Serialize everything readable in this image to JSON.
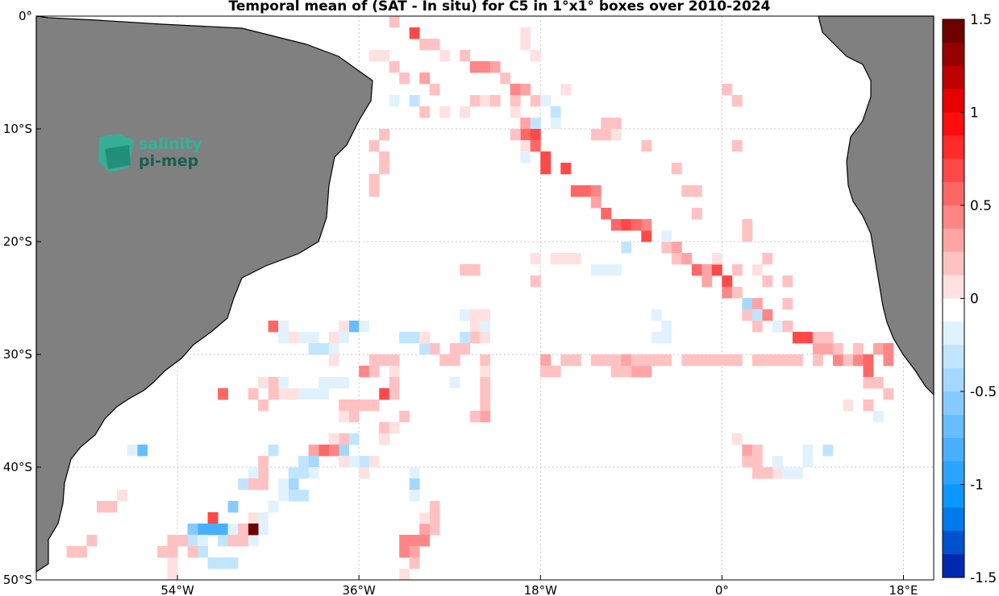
{
  "title": "Temporal mean of (SAT - In situ) for C5 in 1°x1° boxes over 2010-2024",
  "logo": {
    "line1": "salinity",
    "line2": "pi-mep",
    "color1": "#2bb59a",
    "color2": "#15604f"
  },
  "colors": {
    "land": "#808080",
    "grid": "#c8c8c8"
  },
  "map": {
    "lon_range": [
      -68,
      21
    ],
    "lat_range": [
      -50,
      0
    ],
    "lat_ticks": [
      {
        "value": 0,
        "label": "0°"
      },
      {
        "value": -10,
        "label": "10°S"
      },
      {
        "value": -20,
        "label": "20°S"
      },
      {
        "value": -30,
        "label": "30°S"
      },
      {
        "value": -40,
        "label": "40°S"
      },
      {
        "value": -50,
        "label": "50°S"
      }
    ],
    "lon_ticks": [
      {
        "value": -54,
        "label": "54°W"
      },
      {
        "value": -36,
        "label": "36°W"
      },
      {
        "value": -18,
        "label": "18°W"
      },
      {
        "value": 0,
        "label": "0°"
      },
      {
        "value": 18,
        "label": "18°E"
      }
    ]
  },
  "colorbar": {
    "range": [
      -1.5,
      1.5
    ],
    "ticks": [
      {
        "value": 1.5,
        "label": "1.5"
      },
      {
        "value": 1,
        "label": "1"
      },
      {
        "value": 0.5,
        "label": "0.5"
      },
      {
        "value": 0,
        "label": "0"
      },
      {
        "value": -0.5,
        "label": "-0.5"
      },
      {
        "value": -1,
        "label": "-1"
      },
      {
        "value": -1.5,
        "label": "-1.5"
      }
    ]
  },
  "cells": [
    [
      -33,
      0,
      0.2
    ],
    [
      -31,
      -1,
      0.8
    ],
    [
      -30,
      -2,
      0.3
    ],
    [
      -29,
      -2,
      0.3
    ],
    [
      -28,
      -3,
      0.1
    ],
    [
      -26,
      -3,
      0.3
    ],
    [
      -25,
      -4,
      0.5
    ],
    [
      -24,
      -4,
      0.5
    ],
    [
      -23,
      -4,
      0.4
    ],
    [
      -22,
      -5,
      0.3
    ],
    [
      -21,
      -6,
      0.5
    ],
    [
      -20,
      -6,
      0.4
    ],
    [
      -19,
      -7,
      0.3
    ],
    [
      -35,
      -3,
      0.1
    ],
    [
      -34,
      -3,
      0.1
    ],
    [
      -33,
      -4,
      0.3
    ],
    [
      -32,
      -5,
      0.2
    ],
    [
      -30,
      -5,
      0.4
    ],
    [
      -29,
      -6,
      0.2
    ],
    [
      -20,
      -1,
      0.1
    ],
    [
      -20,
      -2,
      0.1
    ],
    [
      -19,
      -3,
      0.1
    ],
    [
      -16,
      -6,
      0.1
    ],
    [
      -33,
      -7,
      -0.1
    ],
    [
      -31,
      -7,
      -0.2
    ],
    [
      -30,
      -8,
      0.3
    ],
    [
      -28,
      -8,
      0.1
    ],
    [
      -26,
      -8,
      0.1
    ],
    [
      -25,
      -7,
      0.2
    ],
    [
      -24,
      -7,
      0.1
    ],
    [
      -23,
      -7,
      0.2
    ],
    [
      -21,
      -7,
      0.2
    ],
    [
      -21,
      -8,
      0.1
    ],
    [
      -20,
      -9,
      0.4
    ],
    [
      -20,
      -10,
      0.6
    ],
    [
      -20,
      -11,
      0.1
    ],
    [
      -19,
      -9,
      -0.2
    ],
    [
      -19,
      -10,
      0.7
    ],
    [
      -19,
      -11,
      0.6
    ],
    [
      -21,
      -10,
      0.2
    ],
    [
      -20,
      -12,
      -0.1
    ],
    [
      -34,
      -10,
      0.3
    ],
    [
      -35,
      -11,
      0.2
    ],
    [
      -34,
      -12,
      0.2
    ],
    [
      -34,
      -13,
      0.3
    ],
    [
      -35,
      -14,
      0.3
    ],
    [
      -35,
      -15,
      0.2
    ],
    [
      -18,
      -7,
      -0.1
    ],
    [
      -17,
      -8,
      -0.2
    ],
    [
      -17,
      -9,
      -0.1
    ],
    [
      -18,
      -13,
      0.8
    ],
    [
      -18,
      -12,
      0.7
    ],
    [
      -16,
      -13,
      0.7
    ],
    [
      -15,
      -15,
      0.6
    ],
    [
      -14,
      -15,
      0.6
    ],
    [
      -13,
      -15,
      0.5
    ],
    [
      -13,
      -16,
      0.4
    ],
    [
      -12,
      -17,
      0.6
    ],
    [
      -11,
      -18,
      0.6
    ],
    [
      -10,
      -18,
      0.7
    ],
    [
      -9,
      -18,
      0.6
    ],
    [
      -8,
      -19,
      0.8
    ],
    [
      -8,
      -18,
      0.5
    ],
    [
      -8,
      -11,
      0.2
    ],
    [
      -11,
      -9,
      0.3
    ],
    [
      -12,
      -9,
      0.3
    ],
    [
      -13,
      -10,
      0.2
    ],
    [
      -12,
      -10,
      0.2
    ],
    [
      -11,
      -10,
      0.1
    ],
    [
      -5,
      -13,
      0.2
    ],
    [
      -4,
      -15,
      0.3
    ],
    [
      -3,
      -15,
      0.3
    ],
    [
      -3,
      -17,
      0.2
    ],
    [
      0,
      -6,
      0.2
    ],
    [
      1,
      -7,
      0.3
    ],
    [
      1,
      -11,
      0.2
    ],
    [
      2,
      -18,
      0.2
    ],
    [
      2,
      -19,
      0.2
    ],
    [
      4,
      -21,
      0.2
    ],
    [
      -6,
      -20,
      0.3
    ],
    [
      -5,
      -20,
      0.4
    ],
    [
      -5,
      -21,
      0.3
    ],
    [
      -4,
      -21,
      0.4
    ],
    [
      -3,
      -22,
      0.6
    ],
    [
      -2,
      -22,
      0.4
    ],
    [
      -2,
      -23,
      0.4
    ],
    [
      -1,
      -22,
      0.7
    ],
    [
      0,
      -23,
      0.7
    ],
    [
      0,
      -24,
      0.5
    ],
    [
      1,
      -24,
      0.3
    ],
    [
      2,
      -25,
      -0.4
    ],
    [
      3,
      -25,
      0.4
    ],
    [
      2,
      -26,
      0.2
    ],
    [
      3,
      -26,
      -0.2
    ],
    [
      4,
      -26,
      0.5
    ],
    [
      5,
      -27,
      0.5
    ],
    [
      6,
      -27,
      0.4
    ],
    [
      7,
      -28,
      0.7
    ],
    [
      8,
      -28,
      0.8
    ],
    [
      9,
      -29,
      0.4
    ],
    [
      10,
      -29,
      0.4
    ],
    [
      11,
      -30,
      0.5
    ],
    [
      12,
      -30,
      0.3
    ],
    [
      13,
      -30,
      0.5
    ],
    [
      14,
      -31,
      0.6
    ],
    [
      14,
      -30,
      0.6
    ],
    [
      15,
      -29,
      0.4
    ],
    [
      16,
      -29,
      0.5
    ],
    [
      16,
      -30,
      0.5
    ],
    [
      -10,
      -20,
      -0.2
    ],
    [
      -11,
      -22,
      -0.1
    ],
    [
      -12,
      -22,
      -0.1
    ],
    [
      -13,
      -22,
      -0.1
    ],
    [
      -6,
      -19,
      -0.1
    ],
    [
      -1,
      -21,
      0.1
    ],
    [
      1,
      -22,
      0.2
    ],
    [
      3,
      -22,
      0.1
    ],
    [
      4,
      -23,
      0.2
    ],
    [
      6,
      -23,
      0.2
    ],
    [
      6,
      -25,
      0.2
    ],
    [
      -7,
      -26,
      -0.1
    ],
    [
      -6,
      -27,
      -0.1
    ],
    [
      -6,
      -28,
      -0.1
    ],
    [
      -7,
      -28,
      -0.1
    ],
    [
      3,
      -27,
      0.2
    ],
    [
      5,
      -27,
      -0.1
    ],
    [
      6,
      -27,
      0.2
    ],
    [
      9,
      -28,
      0.2
    ],
    [
      10,
      -28,
      0.3
    ],
    [
      11,
      -29,
      0.3
    ],
    [
      13,
      -29,
      0.2
    ],
    [
      14,
      -32,
      0.3
    ],
    [
      15,
      -32,
      0.2
    ],
    [
      16,
      -33,
      0.2
    ],
    [
      14,
      -34,
      0.2
    ],
    [
      15,
      -35,
      -0.1
    ],
    [
      12,
      -34,
      0.1
    ],
    [
      -18,
      -30,
      0.4
    ],
    [
      -18,
      -31,
      0.3
    ],
    [
      -17,
      -31,
      0.2
    ],
    [
      -16,
      -30,
      0.2
    ],
    [
      -15,
      -30,
      0.2
    ],
    [
      -13,
      -30,
      0.2
    ],
    [
      -12,
      -30,
      0.3
    ],
    [
      -11,
      -30,
      0.3
    ],
    [
      -10,
      -30,
      0.4
    ],
    [
      -9,
      -31,
      0.4
    ],
    [
      -8,
      -31,
      0.4
    ],
    [
      -7,
      -30,
      0.3
    ],
    [
      -6,
      -30,
      0.2
    ],
    [
      -4,
      -30,
      0.2
    ],
    [
      -3,
      -30,
      0.2
    ],
    [
      -2,
      -30,
      0.2
    ],
    [
      -1,
      -30,
      0.2
    ],
    [
      0,
      -30,
      0.2
    ],
    [
      1,
      -30,
      0.2
    ],
    [
      3,
      -30,
      0.2
    ],
    [
      4,
      -30,
      0.2
    ],
    [
      5,
      -30,
      0.2
    ],
    [
      6,
      -30,
      0.2
    ],
    [
      7,
      -30,
      0.2
    ],
    [
      9,
      -30,
      0.3
    ],
    [
      -9,
      -30,
      0.3
    ],
    [
      -10,
      -31,
      0.3
    ],
    [
      -11,
      -31,
      0.2
    ],
    [
      -8,
      -30,
      0.3
    ],
    [
      -26,
      -22,
      0.3
    ],
    [
      -25,
      -22,
      0.2
    ],
    [
      -19,
      -21,
      0.1
    ],
    [
      -17,
      -21,
      0.1
    ],
    [
      -16,
      -21,
      0.1
    ],
    [
      -15,
      -21,
      0.1
    ],
    [
      -19,
      -23,
      0.2
    ],
    [
      -26,
      -26,
      -0.1
    ],
    [
      -25,
      -26,
      0.1
    ],
    [
      -24,
      -26,
      0.1
    ],
    [
      -24,
      -27,
      -0.1
    ],
    [
      -25,
      -27,
      0.1
    ],
    [
      -25,
      -28,
      0.2
    ],
    [
      -26,
      -28,
      -0.2
    ],
    [
      -24,
      -28,
      0.1
    ],
    [
      -28,
      -30,
      0.2
    ],
    [
      -27,
      -30,
      0.2
    ],
    [
      -26,
      -29,
      0.3
    ],
    [
      -27,
      -29,
      0.2
    ],
    [
      -29,
      -29,
      0.2
    ],
    [
      -30,
      -29,
      -0.2
    ],
    [
      -31,
      -28,
      -0.2
    ],
    [
      -32,
      -28,
      -0.2
    ],
    [
      -30,
      -28,
      0.1
    ],
    [
      -33,
      -30,
      0.2
    ],
    [
      -34,
      -30,
      0.2
    ],
    [
      -35,
      -30,
      0.2
    ],
    [
      -36,
      -31,
      0.5
    ],
    [
      -35,
      -31,
      0.2
    ],
    [
      -33,
      -31,
      0.1
    ],
    [
      -33,
      -32,
      0.2
    ],
    [
      -37,
      -27,
      -0.6
    ],
    [
      -36,
      -27,
      -0.1
    ],
    [
      -38,
      -27,
      0.1
    ],
    [
      -38,
      -28,
      -0.1
    ],
    [
      -39,
      -28,
      0.1
    ],
    [
      -45,
      -27,
      0.6
    ],
    [
      -44,
      -27,
      -0.1
    ],
    [
      -44,
      -28,
      -0.1
    ],
    [
      -43,
      -28,
      0.1
    ],
    [
      -42,
      -28,
      -0.1
    ],
    [
      -41,
      -28,
      -0.1
    ],
    [
      -41,
      -29,
      -0.2
    ],
    [
      -40,
      -29,
      -0.2
    ],
    [
      -39,
      -29,
      -0.1
    ],
    [
      -39,
      -30,
      0.1
    ],
    [
      -24,
      -30,
      0.2
    ],
    [
      -24,
      -31,
      0.1
    ],
    [
      -24,
      -32,
      0.3
    ],
    [
      -24,
      -33,
      0.3
    ],
    [
      -24,
      -34,
      0.2
    ],
    [
      -24,
      -35,
      0.4
    ],
    [
      -25,
      -35,
      0.3
    ],
    [
      -27,
      -32,
      -0.1
    ],
    [
      -38,
      -34,
      0.2
    ],
    [
      -37,
      -34,
      0.2
    ],
    [
      -36,
      -34,
      0.2
    ],
    [
      -35,
      -34,
      0.2
    ],
    [
      -34,
      -33,
      0.7
    ],
    [
      -33,
      -33,
      0.2
    ],
    [
      -32,
      -35,
      0.2
    ],
    [
      -33,
      -36,
      0.2
    ],
    [
      -34,
      -36,
      0.2
    ],
    [
      -34,
      -37,
      0.2
    ],
    [
      -37,
      -35,
      0.2
    ],
    [
      -40,
      -32,
      -0.1
    ],
    [
      -39,
      -32,
      -0.1
    ],
    [
      -38,
      -32,
      -0.1
    ],
    [
      -40,
      -33,
      -0.1
    ],
    [
      -41,
      -33,
      -0.1
    ],
    [
      -42,
      -33,
      -0.1
    ],
    [
      -43,
      -33,
      0.1
    ],
    [
      -44,
      -33,
      0.1
    ],
    [
      -44,
      -32,
      -0.1
    ],
    [
      -45,
      -32,
      0.2
    ],
    [
      -46,
      -32,
      0.1
    ],
    [
      -47,
      -33,
      0.3
    ],
    [
      -45,
      -33,
      0.2
    ],
    [
      -46,
      -34,
      0.2
    ],
    [
      -50,
      -33,
      0.6
    ],
    [
      -38,
      -35,
      0.1
    ],
    [
      -37,
      -37,
      -0.2
    ],
    [
      -38,
      -37,
      0.2
    ],
    [
      -38,
      -38,
      -0.4
    ],
    [
      -39,
      -37,
      0.1
    ],
    [
      -39,
      -38,
      0.5
    ],
    [
      -40,
      -38,
      0.6
    ],
    [
      -41,
      -38,
      0.4
    ],
    [
      -41,
      -39,
      -0.4
    ],
    [
      -41,
      -40,
      -0.1
    ],
    [
      -42,
      -39,
      -0.3
    ],
    [
      -43,
      -40,
      -0.2
    ],
    [
      -42,
      -40,
      -0.2
    ],
    [
      -43,
      -41,
      -0.4
    ],
    [
      -42,
      -42,
      -0.3
    ],
    [
      -43,
      -42,
      -0.3
    ],
    [
      -44,
      -41,
      -0.1
    ],
    [
      -44,
      -42,
      -0.1
    ],
    [
      -45,
      -43,
      -0.1
    ],
    [
      -46,
      -44,
      -0.1
    ],
    [
      -46,
      -45,
      -0.1
    ],
    [
      -47,
      -45,
      -0.1
    ],
    [
      -47,
      -46,
      -0.1
    ],
    [
      -45,
      -38,
      -0.2
    ],
    [
      -46,
      -39,
      0.2
    ],
    [
      -46,
      -40,
      0.3
    ],
    [
      -47,
      -40,
      -0.1
    ],
    [
      -47,
      -41,
      0.3
    ],
    [
      -46,
      -41,
      0.2
    ],
    [
      -48,
      -41,
      -0.2
    ],
    [
      -49,
      -43,
      -0.5
    ],
    [
      -31,
      -40,
      -0.1
    ],
    [
      -31,
      -41,
      -0.4
    ],
    [
      -31,
      -42,
      -0.1
    ],
    [
      -29,
      -44,
      0.2
    ],
    [
      -29,
      -45,
      0.3
    ],
    [
      -30,
      -45,
      0.4
    ],
    [
      -30,
      -46,
      0.5
    ],
    [
      -31,
      -46,
      0.5
    ],
    [
      -32,
      -46,
      0.5
    ],
    [
      -32,
      -47,
      0.5
    ],
    [
      -31,
      -47,
      0.4
    ],
    [
      -31,
      -48,
      0.2
    ],
    [
      -32,
      -49,
      0.1
    ],
    [
      -30,
      -44,
      0.1
    ],
    [
      -29,
      -43,
      0.2
    ],
    [
      -47,
      -44,
      0.1
    ],
    [
      -47,
      -45,
      0.2
    ],
    [
      -47,
      -45,
      1.5
    ],
    [
      -51,
      -44,
      0.8
    ],
    [
      -51,
      -45,
      -0.8
    ],
    [
      -52,
      -45,
      -0.8
    ],
    [
      -50,
      -45,
      -0.8
    ],
    [
      -53,
      -45,
      -0.5
    ],
    [
      -49,
      -45,
      -0.1
    ],
    [
      -48,
      -45,
      0.2
    ],
    [
      -53,
      -46,
      -0.3
    ],
    [
      -54,
      -46,
      0.2
    ],
    [
      -55,
      -46,
      0.2
    ],
    [
      -52,
      -46,
      -0.1
    ],
    [
      -50,
      -46,
      -0.3
    ],
    [
      -49,
      -46,
      0.3
    ],
    [
      -48,
      -46,
      0.2
    ],
    [
      -52,
      -47,
      -0.3
    ],
    [
      -53,
      -47,
      0.2
    ],
    [
      -55,
      -47,
      0.2
    ],
    [
      -56,
      -47,
      0.2
    ],
    [
      -49,
      -48,
      -0.3
    ],
    [
      -50,
      -48,
      -0.3
    ],
    [
      -51,
      -48,
      -0.3
    ],
    [
      -55,
      -48,
      0.1
    ],
    [
      -55,
      -49,
      0.1
    ],
    [
      -61,
      -43,
      0.3
    ],
    [
      -62,
      -43,
      0.3
    ],
    [
      -60,
      -42,
      0.1
    ],
    [
      -63,
      -46,
      0.3
    ],
    [
      -64,
      -47,
      0.2
    ],
    [
      -65,
      -47,
      0.2
    ],
    [
      -58,
      -38,
      -0.6
    ],
    [
      -59,
      -38,
      -0.1
    ],
    [
      1,
      -37,
      0.1
    ],
    [
      2,
      -38,
      0.4
    ],
    [
      3,
      -38,
      0.2
    ],
    [
      3,
      -39,
      0.3
    ],
    [
      2,
      -39,
      0.3
    ],
    [
      4,
      -40,
      0.1
    ],
    [
      5,
      -40,
      0.1
    ],
    [
      6,
      -40,
      -0.1
    ],
    [
      7,
      -40,
      -0.1
    ],
    [
      8,
      -39,
      -0.1
    ],
    [
      8,
      -38,
      -0.1
    ],
    [
      10,
      -38,
      -0.2
    ],
    [
      5,
      -39,
      -0.1
    ],
    [
      4,
      -40,
      0.2
    ],
    [
      3,
      -40,
      0.2
    ],
    [
      -34,
      -37,
      0.1
    ],
    [
      -33,
      -36,
      0.1
    ],
    [
      -35,
      -39,
      0.1
    ],
    [
      -36,
      -40,
      0.1
    ],
    [
      -38,
      -39,
      0.1
    ],
    [
      -36,
      -39,
      -0.2
    ],
    [
      -37,
      -39,
      -0.1
    ]
  ]
}
